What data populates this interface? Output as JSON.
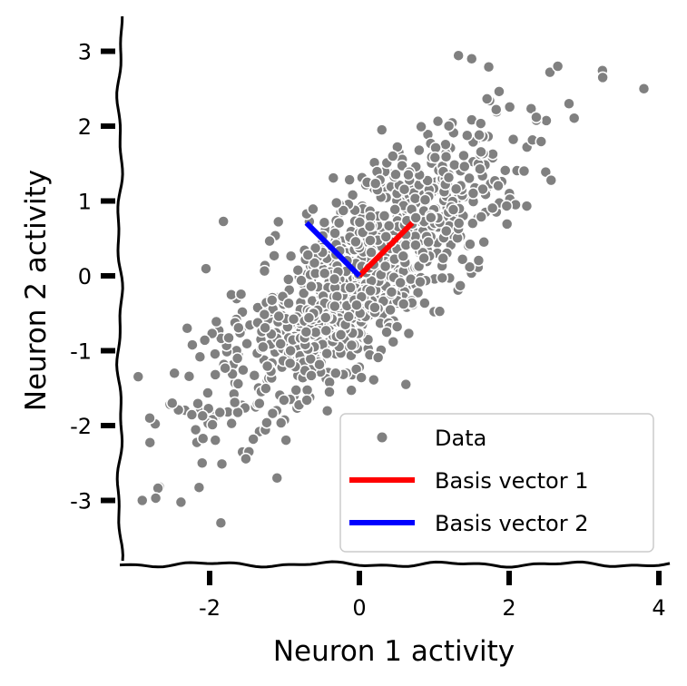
{
  "chart_data": {
    "type": "scatter",
    "title": "",
    "xlabel": "Neuron 1 activity",
    "ylabel": "Neuron 2 activity",
    "xlim": [
      -3.2,
      4.1
    ],
    "ylim": [
      -3.8,
      3.45
    ],
    "xticks": [
      -2,
      0,
      2,
      4
    ],
    "yticks": [
      -3,
      -2,
      -1,
      0,
      1,
      2,
      3
    ],
    "xtick_labels": [
      "-2",
      "0",
      "2",
      "4"
    ],
    "ytick_labels": [
      "-3",
      "-2",
      "-1",
      "0",
      "1",
      "2",
      "3"
    ],
    "grid": false,
    "legend_placement": "lower-right",
    "series": [
      {
        "name": "Data",
        "kind": "points",
        "color": "#808080",
        "edge_color": "#ffffff",
        "sample_count": 1000,
        "correlation": 0.8,
        "outliers": [
          [
            -2.9,
            -3.0
          ],
          [
            -2.8,
            -1.9
          ],
          [
            -2.5,
            -1.7
          ],
          [
            -2.3,
            -0.7
          ],
          [
            -1.85,
            -3.3
          ],
          [
            -2.1,
            -2.5
          ],
          [
            -1.1,
            -2.7
          ],
          [
            -0.4,
            -1.55
          ],
          [
            1.5,
            2.9
          ],
          [
            2.65,
            2.8
          ],
          [
            3.25,
            2.65
          ],
          [
            3.8,
            2.5
          ],
          [
            2.8,
            2.3
          ],
          [
            2.2,
            1.4
          ],
          [
            0.3,
            1.95
          ]
        ]
      },
      {
        "name": "Basis vector 1",
        "kind": "line",
        "color": "#ff0000",
        "x": [
          0,
          0.707
        ],
        "y": [
          0,
          0.707
        ]
      },
      {
        "name": "Basis vector 2",
        "kind": "line",
        "color": "#0000ff",
        "x": [
          0,
          -0.707
        ],
        "y": [
          0,
          0.707
        ]
      }
    ]
  }
}
